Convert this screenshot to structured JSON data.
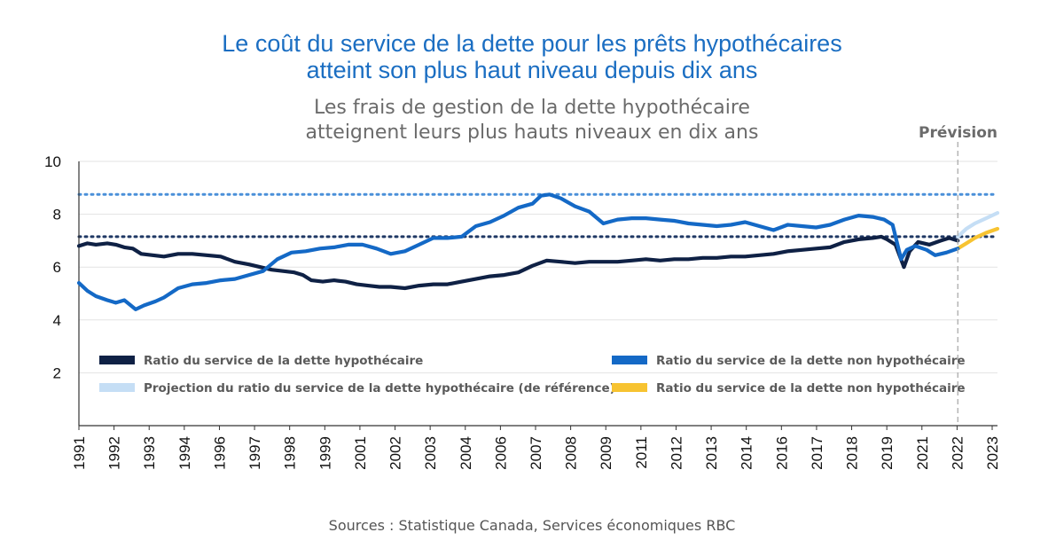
{
  "title_line1": "Le coût du service de la dette pour les prêts hypothécaires",
  "title_line2": "atteint son plus haut niveau depuis dix ans",
  "subtitle_line1": "Les frais de gestion de la dette hypothécaire",
  "subtitle_line2": "atteignent leurs plus hauts niveaux en dix ans",
  "source": "Sources : Statistique Canada, Services économiques RBC",
  "forecast_label": "Prévision",
  "chart_data": {
    "type": "line",
    "ylim": [
      0,
      10
    ],
    "yticks": [
      2,
      4,
      6,
      8,
      10
    ],
    "xlim": [
      1991.0,
      2023.4
    ],
    "xticks": [
      "1991",
      "1992",
      "1993",
      "1994",
      "1996",
      "1997",
      "1998",
      "1999",
      "2001",
      "2002",
      "2003",
      "2004",
      "2006",
      "2007",
      "2008",
      "2009",
      "2011",
      "2012",
      "2013",
      "2014",
      "2016",
      "2017",
      "2018",
      "2019",
      "2021",
      "2022",
      "2023"
    ],
    "forecast_start": 2022.0,
    "reference_lines": [
      {
        "value": 8.75,
        "color": "#4a90d9"
      },
      {
        "value": 7.15,
        "color": "#1f3864"
      }
    ],
    "series": [
      {
        "name": "Ratio du service de la dette hypothécaire",
        "color": "#0f2145",
        "x": [
          1991.0,
          1991.3,
          1991.6,
          1992.0,
          1992.3,
          1992.6,
          1992.9,
          1993.2,
          1993.6,
          1994.0,
          1994.5,
          1995.0,
          1995.5,
          1996.0,
          1996.5,
          1997.0,
          1997.4,
          1997.8,
          1998.2,
          1998.6,
          1998.9,
          1999.2,
          1999.6,
          2000.0,
          2000.4,
          2000.8,
          2001.2,
          2001.6,
          2002.0,
          2002.5,
          2003.0,
          2003.5,
          2004.0,
          2004.5,
          2005.0,
          2005.5,
          2006.0,
          2006.5,
          2007.0,
          2007.5,
          2008.0,
          2008.5,
          2009.0,
          2009.5,
          2010.0,
          2010.5,
          2011.0,
          2011.5,
          2012.0,
          2012.5,
          2013.0,
          2013.5,
          2014.0,
          2014.5,
          2015.0,
          2015.5,
          2016.0,
          2016.5,
          2017.0,
          2017.5,
          2018.0,
          2018.5,
          2019.0,
          2019.3,
          2019.5,
          2019.8,
          2020.1,
          2020.3,
          2020.6,
          2021.0,
          2021.4,
          2021.7,
          2022.0
        ],
        "values": [
          6.8,
          6.9,
          6.85,
          6.9,
          6.85,
          6.75,
          6.7,
          6.5,
          6.45,
          6.4,
          6.5,
          6.5,
          6.45,
          6.4,
          6.2,
          6.1,
          6.0,
          5.9,
          5.85,
          5.8,
          5.7,
          5.5,
          5.45,
          5.5,
          5.45,
          5.35,
          5.3,
          5.25,
          5.25,
          5.2,
          5.3,
          5.35,
          5.35,
          5.45,
          5.55,
          5.65,
          5.7,
          5.8,
          6.05,
          6.25,
          6.2,
          6.15,
          6.2,
          6.2,
          6.2,
          6.25,
          6.3,
          6.25,
          6.3,
          6.3,
          6.35,
          6.35,
          6.4,
          6.4,
          6.45,
          6.5,
          6.6,
          6.65,
          6.7,
          6.75,
          6.95,
          7.05,
          7.1,
          7.15,
          7.05,
          6.85,
          6.0,
          6.6,
          6.95,
          6.85,
          7.0,
          7.1,
          7.0
        ]
      },
      {
        "name": "Ratio du service de la dette non hypothécaire",
        "color": "#1469c6",
        "x": [
          1991.0,
          1991.3,
          1991.6,
          1992.0,
          1992.3,
          1992.6,
          1993.0,
          1993.3,
          1993.7,
          1994.0,
          1994.5,
          1995.0,
          1995.5,
          1996.0,
          1996.5,
          1997.0,
          1997.5,
          1998.0,
          1998.5,
          1999.0,
          1999.5,
          2000.0,
          2000.5,
          2001.0,
          2001.5,
          2002.0,
          2002.5,
          2003.0,
          2003.5,
          2004.0,
          2004.5,
          2005.0,
          2005.5,
          2006.0,
          2006.5,
          2007.0,
          2007.3,
          2007.6,
          2008.0,
          2008.5,
          2009.0,
          2009.5,
          2010.0,
          2010.5,
          2011.0,
          2011.5,
          2012.0,
          2012.5,
          2013.0,
          2013.5,
          2014.0,
          2014.5,
          2015.0,
          2015.5,
          2016.0,
          2016.5,
          2017.0,
          2017.5,
          2018.0,
          2018.5,
          2019.0,
          2019.4,
          2019.7,
          2020.0,
          2020.2,
          2020.5,
          2020.9,
          2021.2,
          2021.6,
          2022.0
        ],
        "values": [
          5.4,
          5.1,
          4.9,
          4.75,
          4.65,
          4.75,
          4.4,
          4.55,
          4.7,
          4.85,
          5.2,
          5.35,
          5.4,
          5.5,
          5.55,
          5.7,
          5.85,
          6.3,
          6.55,
          6.6,
          6.7,
          6.75,
          6.85,
          6.85,
          6.7,
          6.5,
          6.6,
          6.85,
          7.1,
          7.1,
          7.15,
          7.55,
          7.7,
          7.95,
          8.25,
          8.4,
          8.7,
          8.75,
          8.6,
          8.3,
          8.1,
          7.65,
          7.8,
          7.85,
          7.85,
          7.8,
          7.75,
          7.65,
          7.6,
          7.55,
          7.6,
          7.7,
          7.55,
          7.4,
          7.6,
          7.55,
          7.5,
          7.6,
          7.8,
          7.95,
          7.9,
          7.8,
          7.6,
          6.3,
          6.65,
          6.8,
          6.65,
          6.45,
          6.55,
          6.7
        ]
      },
      {
        "name": "Projection du ratio du service de la dette hypothécaire (de référence)",
        "color": "#c5def5",
        "x": [
          2022.0,
          2022.3,
          2022.6,
          2023.0,
          2023.4
        ],
        "values": [
          7.15,
          7.45,
          7.65,
          7.85,
          8.05
        ]
      },
      {
        "name": "Ratio du service de la dette non hypothécaire",
        "color": "#f7c331",
        "x": [
          2022.0,
          2022.3,
          2022.6,
          2023.0,
          2023.4
        ],
        "values": [
          6.7,
          6.9,
          7.1,
          7.3,
          7.45
        ]
      }
    ]
  }
}
